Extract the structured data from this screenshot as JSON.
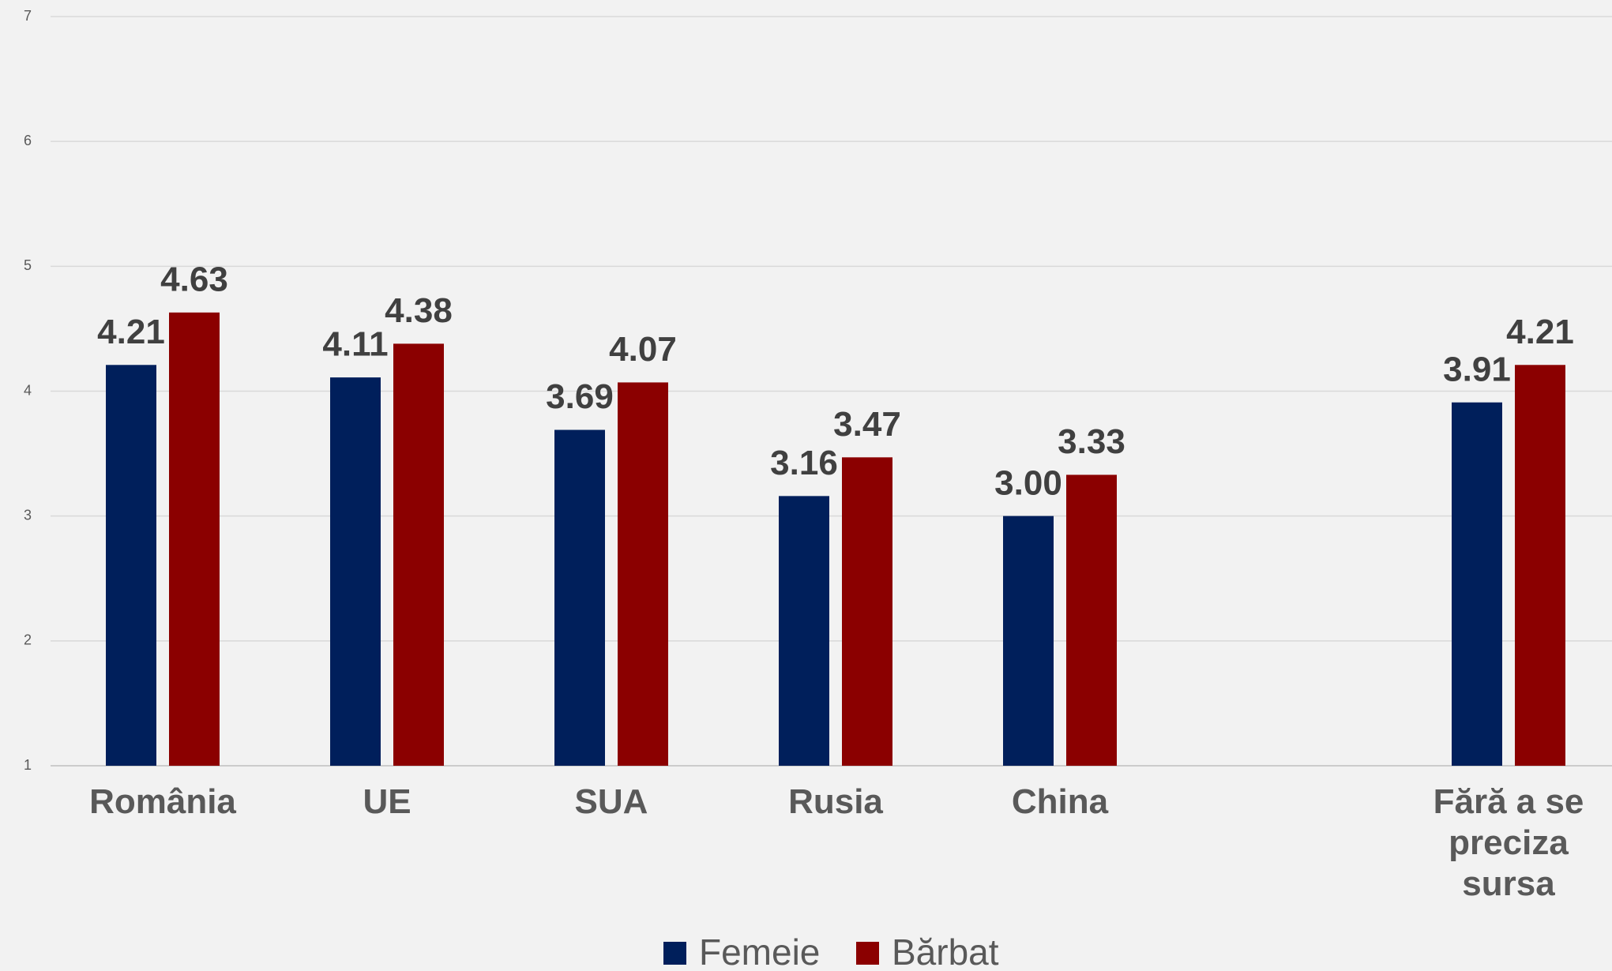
{
  "chart_data": {
    "type": "bar",
    "categories": [
      "România",
      "UE",
      "SUA",
      "Rusia",
      "China",
      null,
      "Fără a se preciza sursa"
    ],
    "series": [
      {
        "name": "Femeie",
        "color": "#001f5b",
        "values": [
          4.21,
          4.11,
          3.69,
          3.16,
          3,
          null,
          3.91
        ],
        "value_labels": [
          "4.21",
          "4.11",
          "3.69",
          "3.16",
          "3.00",
          null,
          "3.91"
        ]
      },
      {
        "name": "Bărbat",
        "color": "#8b0000",
        "values": [
          4.63,
          4.38,
          4.07,
          3.47,
          3.33,
          null,
          4.21
        ],
        "value_labels": [
          "4.63",
          "4.38",
          "4.07",
          "3.47",
          "3.33",
          null,
          "4.21"
        ]
      }
    ],
    "ylim": [
      1,
      7
    ],
    "yticks": [
      1,
      2,
      3,
      4,
      5,
      6,
      7
    ],
    "grid": true,
    "legend": "bottom"
  }
}
